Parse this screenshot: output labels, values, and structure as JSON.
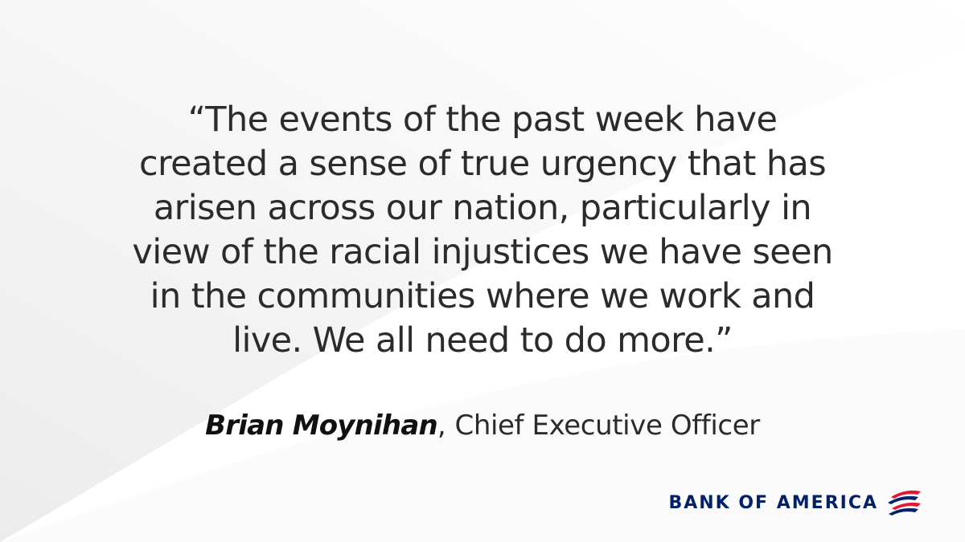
{
  "quote": {
    "lines": [
      "“The events of the past week have",
      "created a sense of true urgency that has",
      "arisen across our nation, particularly in",
      "view of the racial injustices we have seen",
      "in the communities where we work and",
      "live. We all need to do more.”"
    ]
  },
  "attribution": {
    "name": "Brian Moynihan",
    "separator": ",",
    "role": "Chief Executive Officer"
  },
  "brand": {
    "name": "BANK OF AMERICA",
    "logo_icon": "flag-logo-icon",
    "colors": {
      "navy": "#012169",
      "red": "#e31837"
    }
  },
  "colors": {
    "text": "#2b2b2b",
    "background": "#f6f6f6",
    "sweep": "#ffffff"
  }
}
